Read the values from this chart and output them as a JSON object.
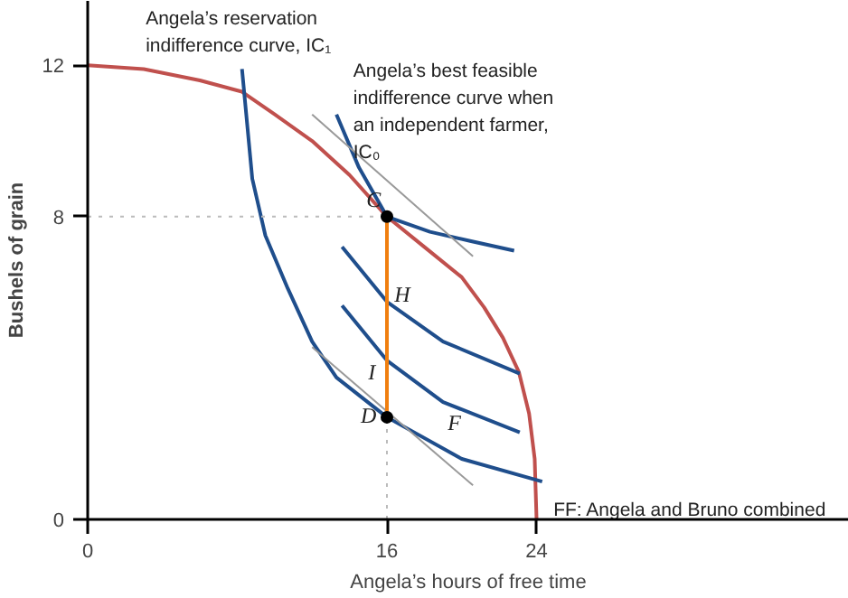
{
  "chart_data": {
    "type": "line",
    "xlabel": "Angela’s hours of free time",
    "ylabel": "Bushels of grain",
    "xlim": [
      0,
      40.7
    ],
    "ylim": [
      0,
      13.7
    ],
    "xticks": [
      0,
      16,
      24
    ],
    "yticks": [
      0,
      8,
      12
    ],
    "grid": false,
    "series": [
      {
        "color": "#c0504d",
        "x": [
          0,
          3,
          6,
          8.25,
          10,
          12,
          14,
          16,
          18,
          20,
          21.2,
          22.2,
          23.05,
          23.6,
          23.9,
          24
        ],
        "values": [
          12,
          11.9,
          11.6,
          11.3,
          10.7,
          10.0,
          9.1,
          8,
          7.2,
          6.4,
          5.6,
          4.8,
          3.9,
          2.8,
          1.6,
          0
        ]
      },
      {
        "color": "#1f4e8c",
        "x": [
          8.25,
          8.8,
          9.5,
          10.7,
          12,
          13.3,
          16,
          20,
          24.3
        ],
        "values": [
          11.9,
          9.0,
          7.5,
          6.1,
          4.7,
          3.75,
          2.7,
          1.6,
          1.0
        ]
      },
      {
        "color": "#1f4e8c",
        "x": [
          13.3,
          14.5,
          16,
          18.3,
          20.5,
          22.8
        ],
        "values": [
          10.7,
          9.3,
          8,
          7.6,
          7.35,
          7.1
        ]
      },
      {
        "color": "#1f4e8c",
        "x": [
          13.6,
          16,
          19,
          23.1
        ],
        "values": [
          7.2,
          5.75,
          4.7,
          3.85
        ]
      },
      {
        "color": "#1f4e8c",
        "x": [
          13.6,
          16,
          19,
          23.1
        ],
        "values": [
          5.65,
          4.2,
          3.1,
          2.3
        ]
      },
      {
        "color": "#999999",
        "x": [
          12,
          20.6
        ],
        "values": [
          10.7,
          6.95
        ]
      },
      {
        "color": "#999999",
        "x": [
          12,
          20.6
        ],
        "values": [
          4.55,
          0.9
        ]
      },
      {
        "color": "#bbbbbb",
        "line_style": "dotted",
        "x": [
          0,
          16
        ],
        "values": [
          8,
          8
        ]
      },
      {
        "color": "#bbbbbb",
        "line_style": "dotted",
        "x": [
          16,
          16
        ],
        "values": [
          0,
          2.7
        ]
      },
      {
        "color": "#f07f0f",
        "x": [
          16,
          16
        ],
        "values": [
          2.85,
          7.85
        ]
      },
      {
        "type": "scatter",
        "marker": "circle",
        "color": "#000000",
        "x": [
          16,
          16
        ],
        "values": [
          8,
          2.7
        ]
      }
    ],
    "annotations": [
      "Angela’s reservation\nindifference curve, IC₁",
      "Angela’s best feasible\nindifference curve when\nan independent farmer,\nIC₀",
      "C",
      "H",
      "I",
      "D",
      "F",
      "FF: Angela and Bruno combined"
    ]
  }
}
